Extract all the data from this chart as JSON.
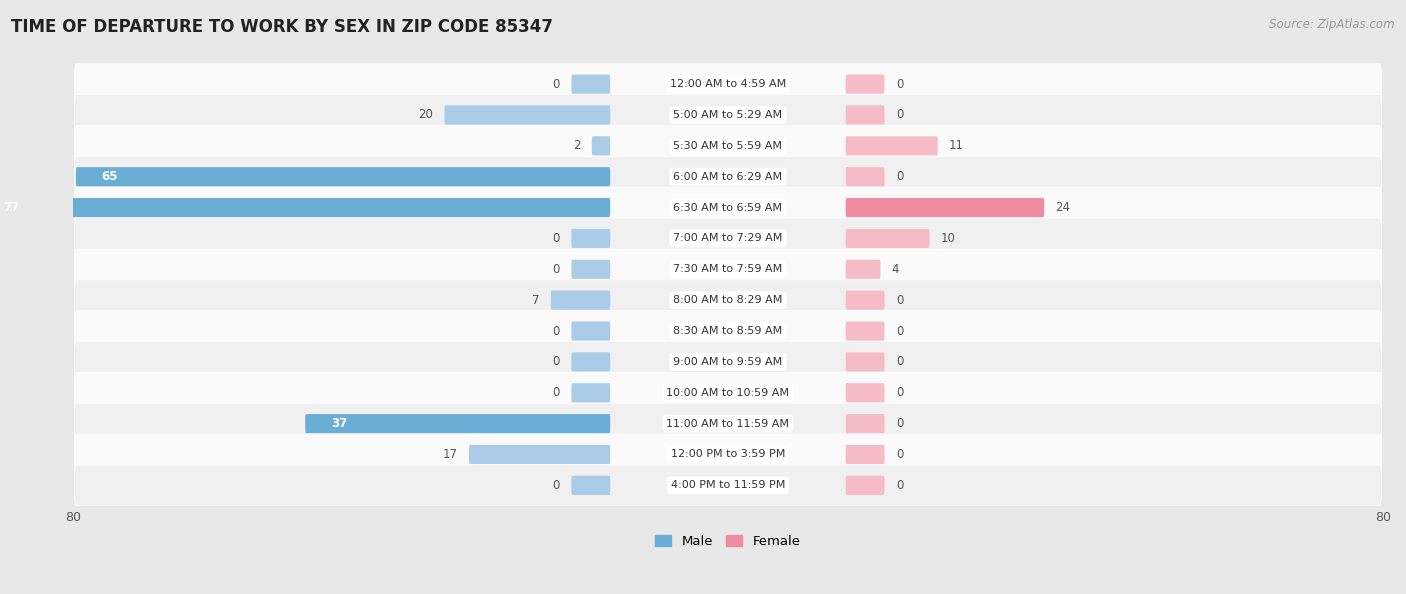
{
  "title": "TIME OF DEPARTURE TO WORK BY SEX IN ZIP CODE 85347",
  "source": "Source: ZipAtlas.com",
  "categories": [
    "12:00 AM to 4:59 AM",
    "5:00 AM to 5:29 AM",
    "5:30 AM to 5:59 AM",
    "6:00 AM to 6:29 AM",
    "6:30 AM to 6:59 AM",
    "7:00 AM to 7:29 AM",
    "7:30 AM to 7:59 AM",
    "8:00 AM to 8:29 AM",
    "8:30 AM to 8:59 AM",
    "9:00 AM to 9:59 AM",
    "10:00 AM to 10:59 AM",
    "11:00 AM to 11:59 AM",
    "12:00 PM to 3:59 PM",
    "4:00 PM to 11:59 PM"
  ],
  "male_values": [
    0,
    20,
    2,
    65,
    77,
    0,
    0,
    7,
    0,
    0,
    0,
    37,
    17,
    0
  ],
  "female_values": [
    0,
    0,
    11,
    0,
    24,
    10,
    4,
    0,
    0,
    0,
    0,
    0,
    0,
    0
  ],
  "male_color": "#6aaed6",
  "female_color": "#f08ca0",
  "male_color_light": "#aacce8",
  "female_color_light": "#f5bcc8",
  "male_label": "Male",
  "female_label": "Female",
  "axis_max": 80,
  "bg_color": "#e8e8e8",
  "row_bg_odd": "#f0f0f0",
  "row_bg_even": "#fafafa",
  "title_fontsize": 12,
  "source_fontsize": 8.5,
  "label_fontsize": 8.5,
  "category_fontsize": 8,
  "value_fontsize": 8.5
}
